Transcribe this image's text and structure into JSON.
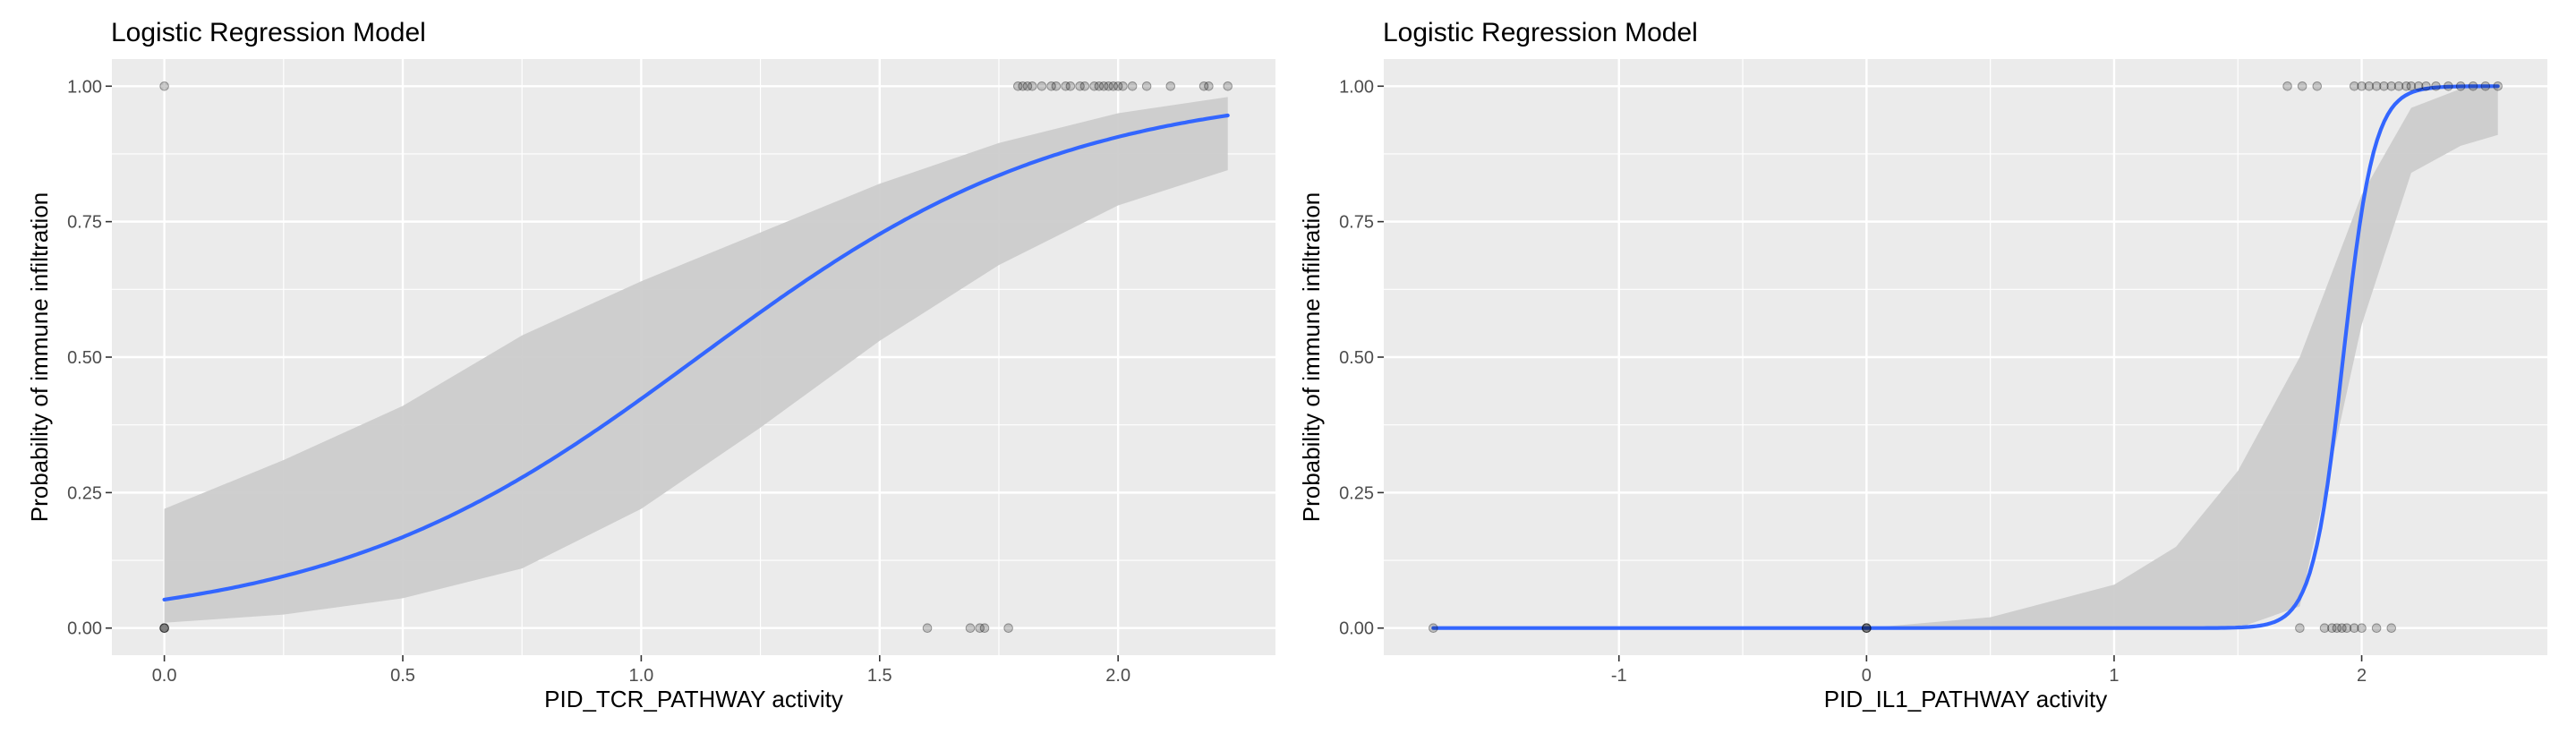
{
  "chart_data": [
    {
      "type": "line",
      "title": "Logistic Regression Model",
      "xlabel": "PID_TCR_PATHWAY activity",
      "ylabel": "Probability of immune infiltration",
      "xlim": [
        -0.11,
        2.33
      ],
      "ylim": [
        -0.05,
        1.05
      ],
      "x_ticks": [
        0.0,
        0.5,
        1.0,
        1.5,
        2.0
      ],
      "x_tick_labels": [
        "0.0",
        "0.5",
        "1.0",
        "1.5",
        "2.0"
      ],
      "y_ticks": [
        0.0,
        0.25,
        0.5,
        0.75,
        1.0
      ],
      "y_tick_labels": [
        "0.00",
        "0.25",
        "0.50",
        "0.75",
        "1.00"
      ],
      "grid": true,
      "background": "#ebebeb",
      "line_color": "#3366ff",
      "ribbon_color": "#cccccc",
      "fit": {
        "intercept": -2.89,
        "slope": 2.58,
        "x_range": [
          0.0,
          2.23
        ]
      },
      "ribbon": {
        "x": [
          0.0,
          0.25,
          0.5,
          0.75,
          1.0,
          1.25,
          1.5,
          1.75,
          2.0,
          2.23
        ],
        "lower": [
          0.01,
          0.025,
          0.055,
          0.11,
          0.22,
          0.37,
          0.53,
          0.67,
          0.78,
          0.845
        ],
        "upper": [
          0.22,
          0.31,
          0.41,
          0.54,
          0.64,
          0.73,
          0.82,
          0.895,
          0.95,
          0.98
        ]
      },
      "points": [
        {
          "x": 0.0,
          "y": 1
        },
        {
          "x": 0.0,
          "y": 0
        },
        {
          "x": 0.0,
          "y": 0
        },
        {
          "x": 0.0,
          "y": 0
        },
        {
          "x": 1.6,
          "y": 0
        },
        {
          "x": 1.69,
          "y": 0
        },
        {
          "x": 1.71,
          "y": 0
        },
        {
          "x": 1.72,
          "y": 0
        },
        {
          "x": 1.77,
          "y": 0
        },
        {
          "x": 1.79,
          "y": 1
        },
        {
          "x": 1.8,
          "y": 1
        },
        {
          "x": 1.81,
          "y": 1
        },
        {
          "x": 1.82,
          "y": 1
        },
        {
          "x": 1.84,
          "y": 1
        },
        {
          "x": 1.86,
          "y": 1
        },
        {
          "x": 1.87,
          "y": 1
        },
        {
          "x": 1.89,
          "y": 1
        },
        {
          "x": 1.9,
          "y": 1
        },
        {
          "x": 1.92,
          "y": 1
        },
        {
          "x": 1.93,
          "y": 1
        },
        {
          "x": 1.95,
          "y": 1
        },
        {
          "x": 1.96,
          "y": 1
        },
        {
          "x": 1.97,
          "y": 1
        },
        {
          "x": 1.98,
          "y": 1
        },
        {
          "x": 1.99,
          "y": 1
        },
        {
          "x": 2.0,
          "y": 1
        },
        {
          "x": 2.01,
          "y": 1
        },
        {
          "x": 2.03,
          "y": 1
        },
        {
          "x": 2.06,
          "y": 1
        },
        {
          "x": 2.11,
          "y": 1
        },
        {
          "x": 2.18,
          "y": 1
        },
        {
          "x": 2.19,
          "y": 1
        },
        {
          "x": 2.23,
          "y": 1
        }
      ]
    },
    {
      "type": "line",
      "title": "Logistic Regression Model",
      "xlabel": "PID_IL1_PATHWAY activity",
      "ylabel": "Probability of immune infiltration",
      "xlim": [
        -1.95,
        2.75
      ],
      "ylim": [
        -0.05,
        1.05
      ],
      "x_ticks": [
        -1,
        0,
        1,
        2
      ],
      "x_tick_labels": [
        "-1",
        "0",
        "1",
        "2"
      ],
      "y_ticks": [
        0.0,
        0.25,
        0.5,
        0.75,
        1.0
      ],
      "y_tick_labels": [
        "0.00",
        "0.25",
        "0.50",
        "0.75",
        "1.00"
      ],
      "grid": true,
      "background": "#ebebeb",
      "line_color": "#3366ff",
      "ribbon_color": "#cccccc",
      "fit": {
        "intercept": -31.0,
        "slope": 16.1,
        "x_range": [
          -1.75,
          2.55
        ]
      },
      "ribbon": {
        "x": [
          -1.75,
          -1.0,
          -0.5,
          0.0,
          0.5,
          1.0,
          1.25,
          1.5,
          1.75,
          2.0,
          2.2,
          2.4,
          2.55
        ],
        "lower": [
          0.0,
          0.0,
          0.0,
          0.0,
          0.0,
          0.0,
          0.0,
          0.0,
          0.04,
          0.56,
          0.84,
          0.89,
          0.91
        ],
        "upper": [
          0.0,
          0.0,
          0.0,
          0.0,
          0.02,
          0.08,
          0.15,
          0.29,
          0.5,
          0.8,
          0.96,
          0.995,
          1.0
        ]
      },
      "points": [
        {
          "x": -1.75,
          "y": 0
        },
        {
          "x": 0.0,
          "y": 0
        },
        {
          "x": 0.0,
          "y": 0
        },
        {
          "x": 0.0,
          "y": 0
        },
        {
          "x": 1.75,
          "y": 0
        },
        {
          "x": 1.85,
          "y": 0
        },
        {
          "x": 1.88,
          "y": 0
        },
        {
          "x": 1.9,
          "y": 0
        },
        {
          "x": 1.92,
          "y": 0
        },
        {
          "x": 1.94,
          "y": 0
        },
        {
          "x": 1.97,
          "y": 0
        },
        {
          "x": 2.0,
          "y": 0
        },
        {
          "x": 2.06,
          "y": 0
        },
        {
          "x": 2.12,
          "y": 0
        },
        {
          "x": 1.7,
          "y": 1
        },
        {
          "x": 1.76,
          "y": 1
        },
        {
          "x": 1.82,
          "y": 1
        },
        {
          "x": 1.97,
          "y": 1
        },
        {
          "x": 2.0,
          "y": 1
        },
        {
          "x": 2.03,
          "y": 1
        },
        {
          "x": 2.06,
          "y": 1
        },
        {
          "x": 2.09,
          "y": 1
        },
        {
          "x": 2.12,
          "y": 1
        },
        {
          "x": 2.15,
          "y": 1
        },
        {
          "x": 2.18,
          "y": 1
        },
        {
          "x": 2.2,
          "y": 1
        },
        {
          "x": 2.23,
          "y": 1
        },
        {
          "x": 2.26,
          "y": 1
        },
        {
          "x": 2.3,
          "y": 1
        },
        {
          "x": 2.35,
          "y": 1
        },
        {
          "x": 2.4,
          "y": 1
        },
        {
          "x": 2.45,
          "y": 1
        },
        {
          "x": 2.5,
          "y": 1
        },
        {
          "x": 2.55,
          "y": 1
        }
      ]
    }
  ]
}
